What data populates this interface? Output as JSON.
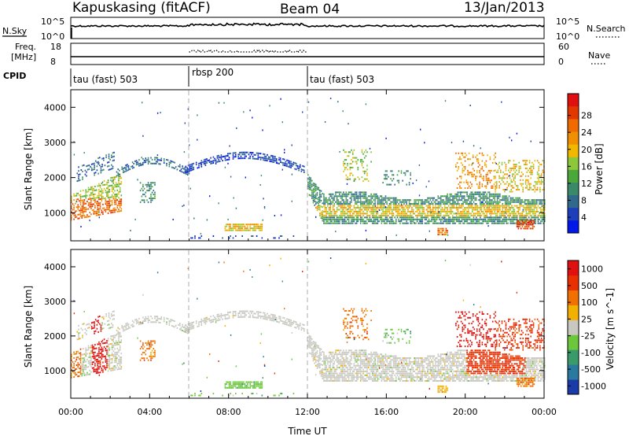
{
  "header": {
    "station": "Kapuskasing (fitACF)",
    "beam": "Beam 04",
    "date": "13/Jan/2013"
  },
  "noise_panel": {
    "left_label": "N.Sky",
    "left_ticks": [
      "10^5",
      "10^0"
    ],
    "right_ticks": [
      "10^5",
      "10^0"
    ],
    "right_label": "N.Search",
    "right_legend_line": "dotted"
  },
  "freq_panel": {
    "left_label_line1": "Freq.",
    "left_label_line2": "[MHz]",
    "left_ticks": [
      "18",
      "8"
    ],
    "right_ticks": [
      "60",
      "0"
    ],
    "right_label": "Nave",
    "right_legend_line": "dotted"
  },
  "cpid_panel": {
    "label": "CPID",
    "modes": [
      {
        "name": "tau (fast) 503",
        "start_hour": 0
      },
      {
        "name": "rbsp 200",
        "start_hour": 6
      },
      {
        "name": "tau (fast) 503",
        "start_hour": 12
      }
    ]
  },
  "chart_data": [
    {
      "type": "heatmap",
      "panel": "power",
      "ylabel": "Slant Range [km]",
      "ylim": [
        200,
        4500
      ],
      "yticks": [
        "1000",
        "2000",
        "3000",
        "4000"
      ],
      "xlim_hours": [
        0,
        24
      ],
      "colorbar_label": "Power [dB]",
      "colorbar_ticks": [
        "28",
        "24",
        "20",
        "16",
        "12",
        "8",
        "4"
      ],
      "colorbar_levels": [
        "#0018e8",
        "#1e3fbb",
        "#2f6a8c",
        "#3a8a6a",
        "#4aa83a",
        "#8cc83a",
        "#f2b800",
        "#f09000",
        "#f06a00",
        "#e23800",
        "#e01010"
      ],
      "mode_boundaries_hours": [
        6,
        12
      ]
    },
    {
      "type": "heatmap",
      "panel": "velocity",
      "ylabel": "Slant Range [km]",
      "ylim": [
        200,
        4500
      ],
      "yticks": [
        "1000",
        "2000",
        "3000",
        "4000"
      ],
      "xlim_hours": [
        0,
        24
      ],
      "colorbar_label": "Velocity [m s^-1]",
      "colorbar_ticks": [
        "1000",
        "500",
        "100",
        "25",
        "-25",
        "-100",
        "-500",
        "-1000"
      ],
      "colorbar_levels": [
        "#1a3ca8",
        "#2a7aa0",
        "#3a9a6a",
        "#6ac83a",
        "#c8c8c0",
        "#f2b000",
        "#f07000",
        "#e83000",
        "#e01010"
      ],
      "mode_boundaries_hours": [
        6,
        12
      ]
    }
  ],
  "x_axis": {
    "ticks": [
      "00:00",
      "04:00",
      "08:00",
      "12:00",
      "16:00",
      "20:00",
      "00:00"
    ],
    "label": "Time UT"
  }
}
